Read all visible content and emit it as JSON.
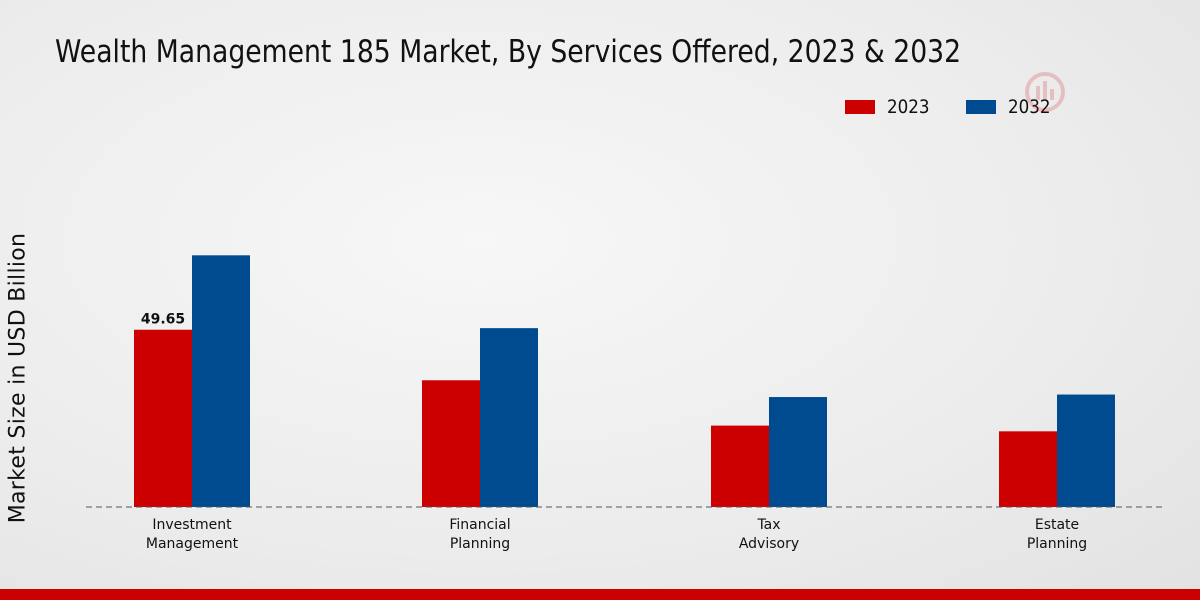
{
  "chart_data": {
    "type": "bar",
    "title": "Wealth Management 185 Market, By Services Offered, 2023 & 2032",
    "xlabel": "",
    "ylabel": "Market Size in USD Billion",
    "ylim": [
      0,
      100
    ],
    "categories": [
      [
        "Investment",
        "Management"
      ],
      [
        "Financial",
        "Planning"
      ],
      [
        "Tax",
        "Advisory"
      ],
      [
        "Estate",
        "Planning"
      ]
    ],
    "series": [
      {
        "name": "2023",
        "color": "#cc0000",
        "values": [
          49.65,
          35.5,
          22.8,
          21.2
        ]
      },
      {
        "name": "2032",
        "color": "#004a8f",
        "values": [
          70.5,
          50.1,
          30.8,
          31.5
        ]
      }
    ],
    "data_labels": [
      {
        "series": 0,
        "index": 0,
        "text": "49.65"
      }
    ],
    "legend_position": "top-right"
  },
  "colors": {
    "accent": "#cc0000",
    "footer": "#cc0000",
    "baseline": "#555555"
  }
}
